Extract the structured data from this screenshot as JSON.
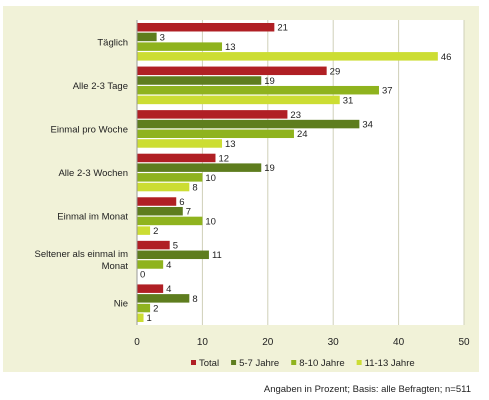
{
  "chart_data": {
    "type": "bar",
    "orientation": "horizontal",
    "categories": [
      "Täglich",
      "Alle 2-3 Tage",
      "Einmal pro Woche",
      "Alle 2-3 Wochen",
      "Einmal im Monat",
      "Seltener als einmal im Monat",
      "Nie"
    ],
    "category_lines": [
      [
        "Täglich"
      ],
      [
        "Alle 2-3 Tage"
      ],
      [
        "Einmal pro Woche"
      ],
      [
        "Alle 2-3 Wochen"
      ],
      [
        "Einmal im Monat"
      ],
      [
        "Seltener als einmal im",
        "Monat"
      ],
      [
        "Nie"
      ]
    ],
    "series": [
      {
        "name": "Total",
        "color": "#b01f24",
        "values": [
          21,
          29,
          23,
          12,
          6,
          5,
          4
        ]
      },
      {
        "name": "5-7 Jahre",
        "color": "#5e7d1e",
        "values": [
          3,
          19,
          34,
          19,
          7,
          11,
          8
        ]
      },
      {
        "name": "8-10 Jahre",
        "color": "#8fb31e",
        "values": [
          13,
          37,
          24,
          10,
          10,
          4,
          2
        ]
      },
      {
        "name": "11-13 Jahre",
        "color": "#ccdd33",
        "values": [
          46,
          31,
          13,
          8,
          2,
          0,
          1
        ]
      }
    ],
    "xlim": [
      0,
      50
    ],
    "xticks": [
      0,
      10,
      20,
      30,
      40,
      50
    ],
    "grid": true,
    "legend_position": "bottom",
    "background_color": "#f1f2d8",
    "footnote": "Angaben in Prozent; Basis: alle Befragten; n=511"
  }
}
